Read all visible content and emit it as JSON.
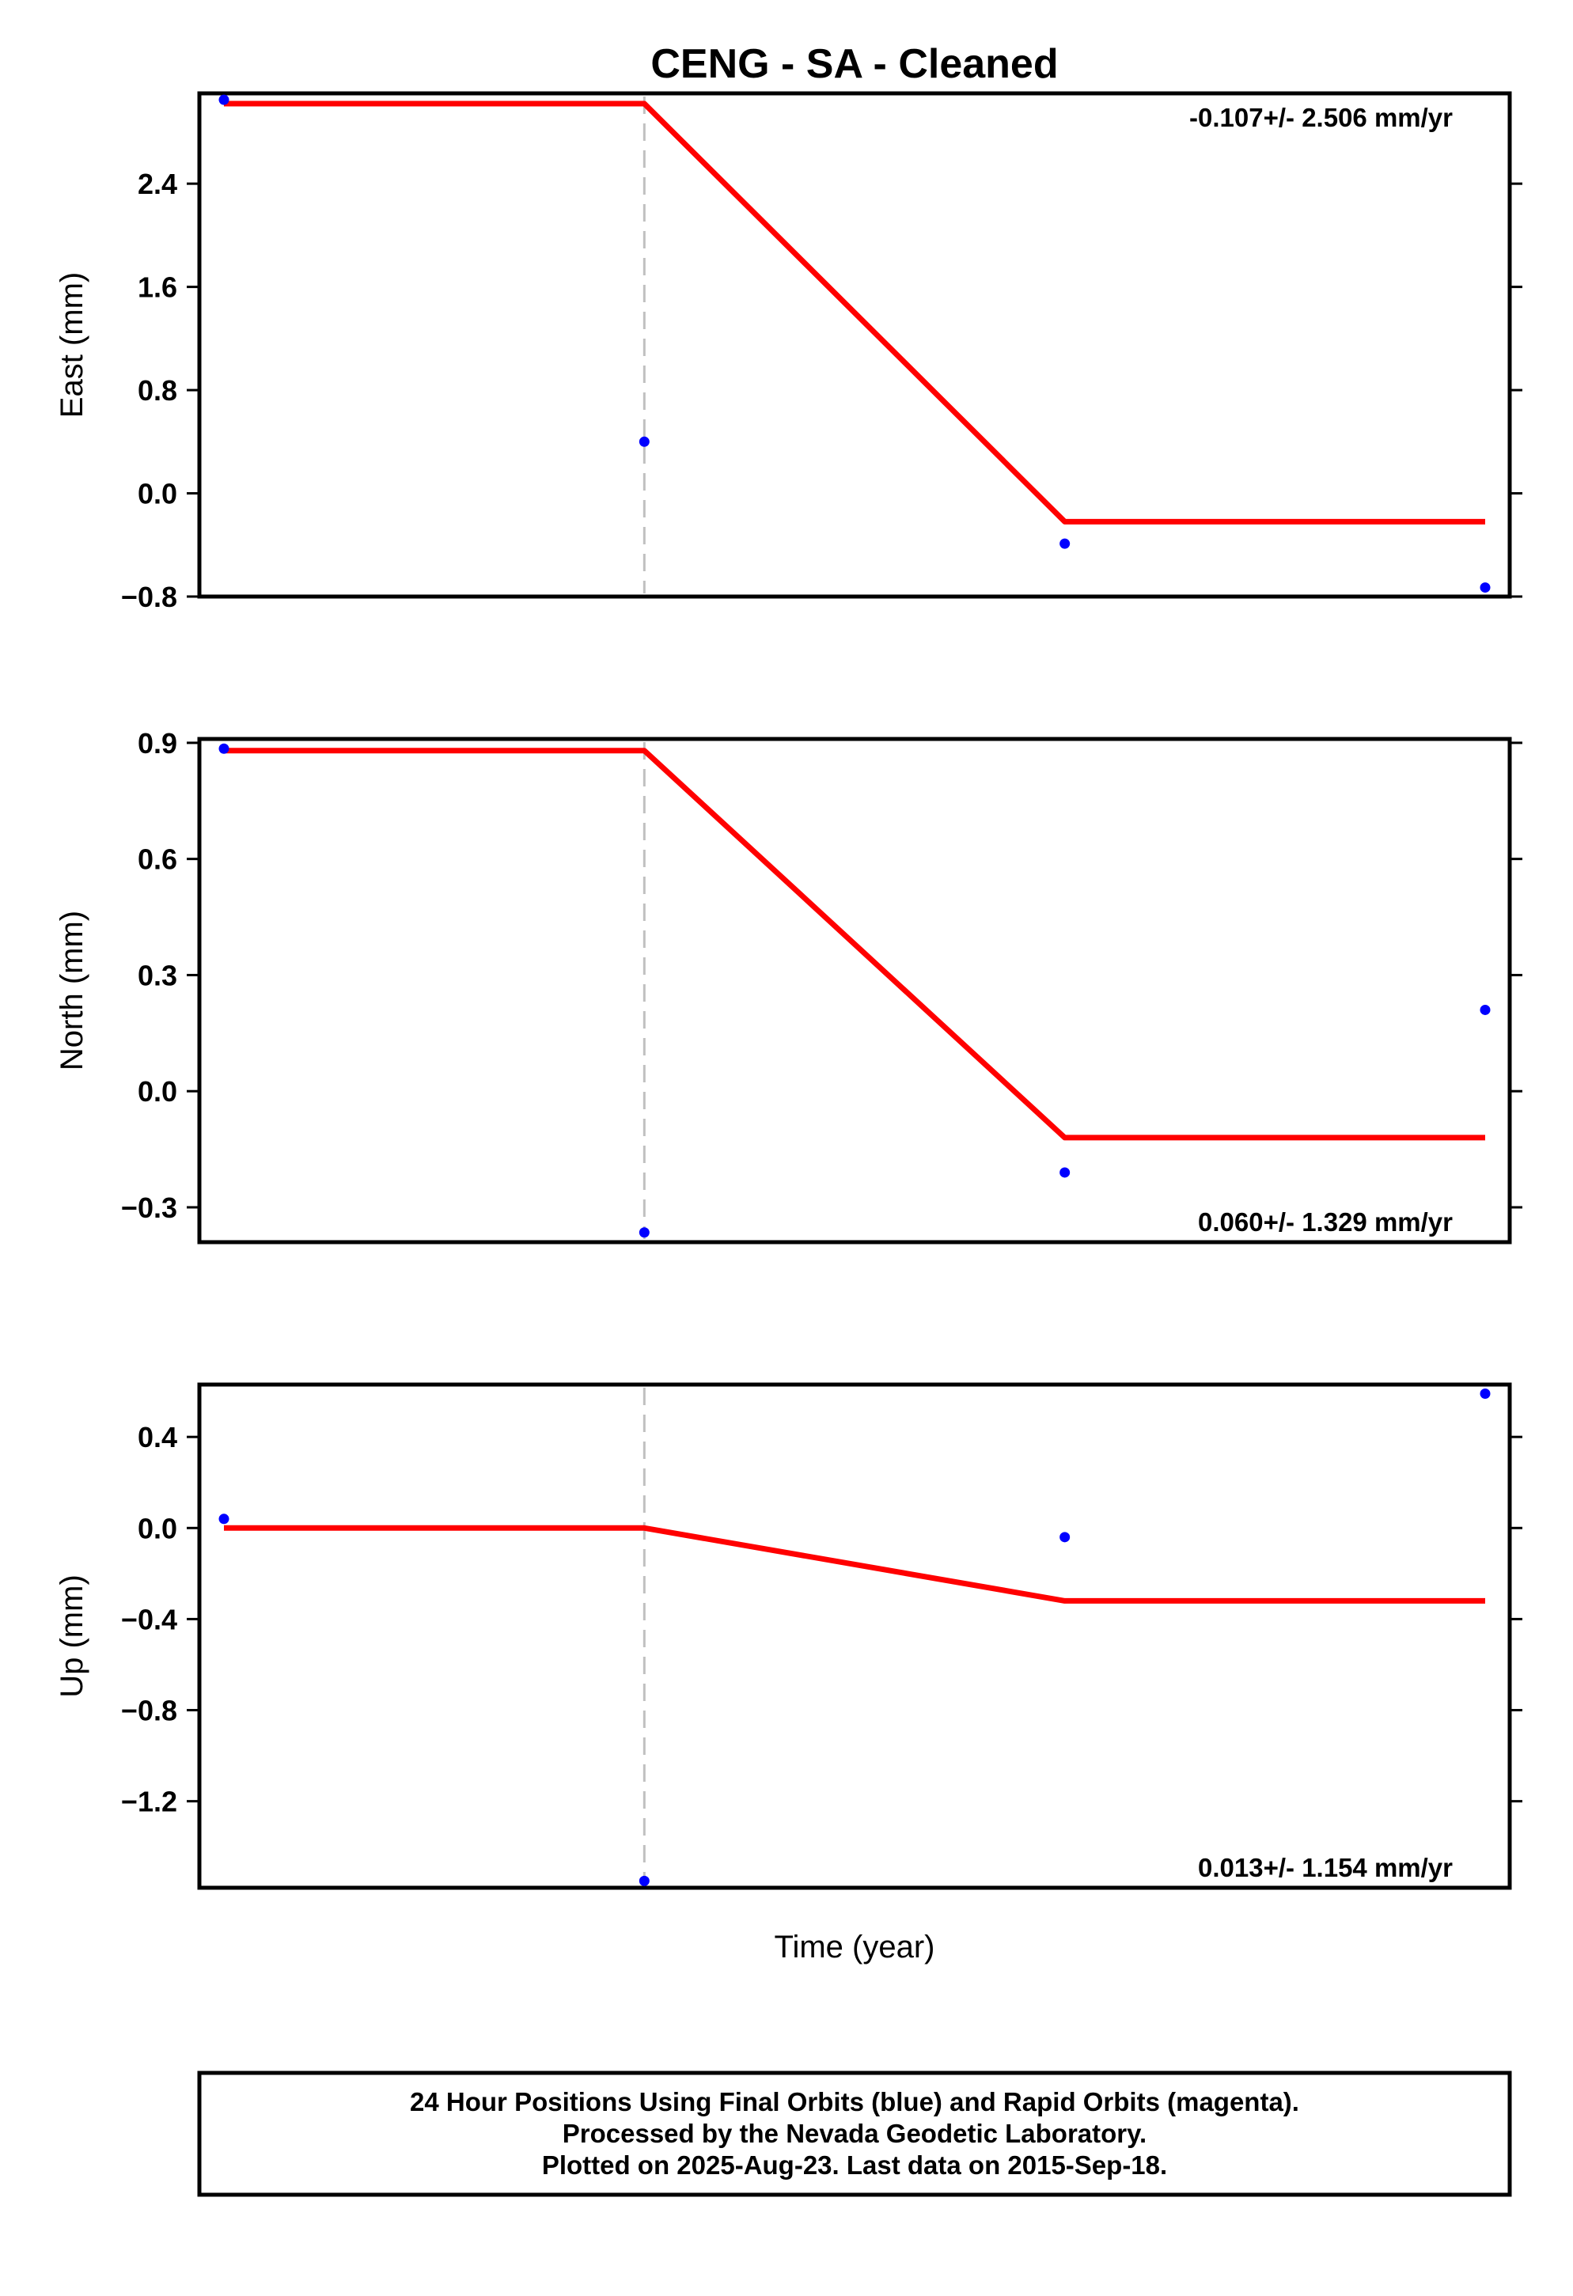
{
  "title": "CENG  - SA - Cleaned",
  "xlabel": "Time (year)",
  "colors": {
    "data_points": "#0000ff",
    "model_line": "#ff0000",
    "break_line": "#c0c0c0",
    "frame": "#000000"
  },
  "chart_data": [
    {
      "type": "scatter",
      "ylabel": "East (mm)",
      "rate_label": "-0.107+/- 2.506 mm/yr",
      "rate_position": "top-right",
      "ylim": [
        -0.8,
        3.1
      ],
      "yticks": [
        2.4,
        1.6,
        0.8,
        0.0,
        -0.8
      ],
      "ytick_labels": [
        "2.4",
        "1.6",
        "0.8",
        "0.0",
        "−0.8"
      ],
      "x": [
        0,
        1,
        2,
        3
      ],
      "series": [
        {
          "values": [
            3.05,
            0.4,
            -0.39,
            -0.73
          ]
        }
      ],
      "model": [
        {
          "x": 0.0,
          "y": 3.02
        },
        {
          "x": 1.0,
          "y": 3.02
        },
        {
          "x": 2.0,
          "y": -0.22
        },
        {
          "x": 3.0,
          "y": -0.22
        }
      ],
      "break_x": 1.0
    },
    {
      "type": "scatter",
      "ylabel": "North (mm)",
      "rate_label": "0.060+/- 1.329 mm/yr",
      "rate_position": "bottom-right",
      "ylim": [
        -0.39,
        0.91
      ],
      "yticks": [
        0.9,
        0.6,
        0.3,
        0.0,
        -0.3
      ],
      "ytick_labels": [
        "0.9",
        "0.6",
        "0.3",
        "0.0",
        "−0.3"
      ],
      "x": [
        0,
        1,
        2,
        3
      ],
      "series": [
        {
          "values": [
            0.885,
            -0.365,
            -0.21,
            0.21
          ]
        }
      ],
      "model": [
        {
          "x": 0.0,
          "y": 0.88
        },
        {
          "x": 1.0,
          "y": 0.88
        },
        {
          "x": 2.0,
          "y": -0.12
        },
        {
          "x": 3.0,
          "y": -0.12
        }
      ],
      "break_x": 1.0
    },
    {
      "type": "scatter",
      "ylabel": "Up (mm)",
      "rate_label": "0.013+/- 1.154 mm/yr",
      "rate_position": "bottom-right",
      "ylim": [
        -1.58,
        0.63
      ],
      "yticks": [
        0.4,
        0.0,
        -0.4,
        -0.8,
        -1.2
      ],
      "ytick_labels": [
        "0.4",
        "0.0",
        "−0.4",
        "−0.8",
        "−1.2"
      ],
      "x": [
        0,
        1,
        2,
        3
      ],
      "series": [
        {
          "values": [
            0.04,
            -1.55,
            -0.04,
            0.59
          ]
        }
      ],
      "model": [
        {
          "x": 0.0,
          "y": 0.0
        },
        {
          "x": 1.0,
          "y": 0.0
        },
        {
          "x": 2.0,
          "y": -0.32
        },
        {
          "x": 3.0,
          "y": -0.32
        }
      ],
      "break_x": 1.0
    }
  ],
  "footer": {
    "line1": "24 Hour Positions Using Final Orbits (blue) and Rapid Orbits (magenta).",
    "line2": "Processed by the Nevada Geodetic Laboratory.",
    "line3": "Plotted on 2025-Aug-23. Last data on 2015-Sep-18."
  }
}
